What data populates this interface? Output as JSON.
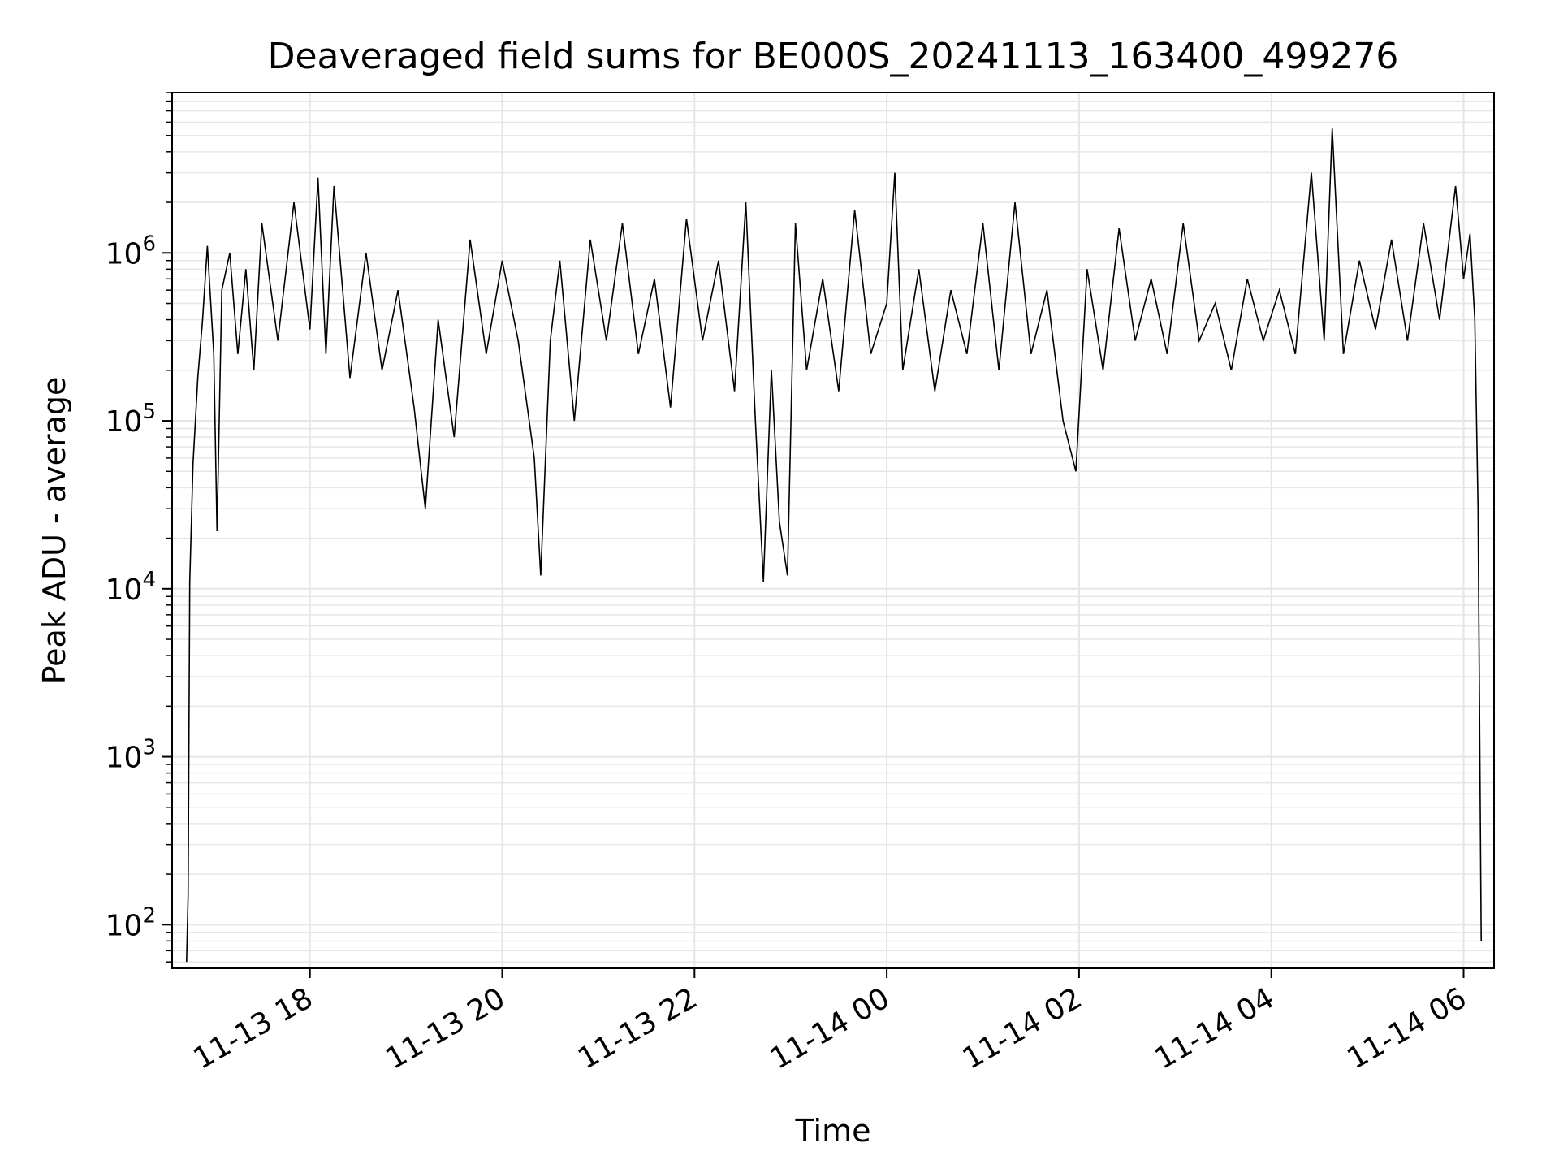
{
  "chart_data": {
    "type": "line",
    "title": "Deaveraged field sums for BE000S_20241113_163400_499276",
    "xlabel": "Time",
    "ylabel": "Peak ADU - average",
    "yscale": "log",
    "ylim": [
      55,
      9000000
    ],
    "xlim": [
      "2024-11-13 16:34",
      "2024-11-14 06:19"
    ],
    "grid": "on (major and minor)",
    "line_color": "#000000",
    "grid_color": "#e6e6e6",
    "x_ticks": [
      {
        "value": "2024-11-13 18:00",
        "label": "11-13 18"
      },
      {
        "value": "2024-11-13 20:00",
        "label": "11-13 20"
      },
      {
        "value": "2024-11-13 22:00",
        "label": "11-13 22"
      },
      {
        "value": "2024-11-14 00:00",
        "label": "11-14 00"
      },
      {
        "value": "2024-11-14 02:00",
        "label": "11-14 02"
      },
      {
        "value": "2024-11-14 04:00",
        "label": "11-14 04"
      },
      {
        "value": "2024-11-14 06:00",
        "label": "11-14 06"
      }
    ],
    "y_ticks": [
      {
        "value": 100,
        "base": "10",
        "exp": "2"
      },
      {
        "value": 1000,
        "base": "10",
        "exp": "3"
      },
      {
        "value": 10000,
        "base": "10",
        "exp": "4"
      },
      {
        "value": 100000,
        "base": "10",
        "exp": "5"
      },
      {
        "value": 1000000,
        "base": "10",
        "exp": "6"
      }
    ],
    "series": [
      {
        "points": [
          [
            "2024-11-13 16:43",
            60
          ],
          [
            "2024-11-13 16:44",
            150
          ],
          [
            "2024-11-13 16:45",
            11000
          ],
          [
            "2024-11-13 16:47",
            55000
          ],
          [
            "2024-11-13 16:50",
            180000
          ],
          [
            "2024-11-13 16:53",
            400000
          ],
          [
            "2024-11-13 16:56",
            1100000
          ],
          [
            "2024-11-13 17:00",
            250000
          ],
          [
            "2024-11-13 17:02",
            22000
          ],
          [
            "2024-11-13 17:05",
            600000
          ],
          [
            "2024-11-13 17:10",
            1000000
          ],
          [
            "2024-11-13 17:15",
            250000
          ],
          [
            "2024-11-13 17:20",
            800000
          ],
          [
            "2024-11-13 17:25",
            200000
          ],
          [
            "2024-11-13 17:30",
            1500000
          ],
          [
            "2024-11-13 17:40",
            300000
          ],
          [
            "2024-11-13 17:50",
            2000000
          ],
          [
            "2024-11-13 18:00",
            350000
          ],
          [
            "2024-11-13 18:05",
            2800000
          ],
          [
            "2024-11-13 18:10",
            250000
          ],
          [
            "2024-11-13 18:15",
            2500000
          ],
          [
            "2024-11-13 18:25",
            180000
          ],
          [
            "2024-11-13 18:35",
            1000000
          ],
          [
            "2024-11-13 18:45",
            200000
          ],
          [
            "2024-11-13 18:55",
            600000
          ],
          [
            "2024-11-13 19:05",
            120000
          ],
          [
            "2024-11-13 19:12",
            30000
          ],
          [
            "2024-11-13 19:20",
            400000
          ],
          [
            "2024-11-13 19:30",
            80000
          ],
          [
            "2024-11-13 19:40",
            1200000
          ],
          [
            "2024-11-13 19:50",
            250000
          ],
          [
            "2024-11-13 20:00",
            900000
          ],
          [
            "2024-11-13 20:10",
            300000
          ],
          [
            "2024-11-13 20:20",
            60000
          ],
          [
            "2024-11-13 20:24",
            12000
          ],
          [
            "2024-11-13 20:30",
            300000
          ],
          [
            "2024-11-13 20:36",
            900000
          ],
          [
            "2024-11-13 20:45",
            100000
          ],
          [
            "2024-11-13 20:55",
            1200000
          ],
          [
            "2024-11-13 21:05",
            300000
          ],
          [
            "2024-11-13 21:15",
            1500000
          ],
          [
            "2024-11-13 21:25",
            250000
          ],
          [
            "2024-11-13 21:35",
            700000
          ],
          [
            "2024-11-13 21:45",
            120000
          ],
          [
            "2024-11-13 21:55",
            1600000
          ],
          [
            "2024-11-13 22:05",
            300000
          ],
          [
            "2024-11-13 22:15",
            900000
          ],
          [
            "2024-11-13 22:25",
            150000
          ],
          [
            "2024-11-13 22:32",
            2000000
          ],
          [
            "2024-11-13 22:38",
            100000
          ],
          [
            "2024-11-13 22:43",
            11000
          ],
          [
            "2024-11-13 22:48",
            200000
          ],
          [
            "2024-11-13 22:53",
            25000
          ],
          [
            "2024-11-13 22:58",
            12000
          ],
          [
            "2024-11-13 23:03",
            1500000
          ],
          [
            "2024-11-13 23:10",
            200000
          ],
          [
            "2024-11-13 23:20",
            700000
          ],
          [
            "2024-11-13 23:30",
            150000
          ],
          [
            "2024-11-13 23:40",
            1800000
          ],
          [
            "2024-11-13 23:50",
            250000
          ],
          [
            "2024-11-14 00:00",
            500000
          ],
          [
            "2024-11-14 00:05",
            3000000
          ],
          [
            "2024-11-14 00:10",
            200000
          ],
          [
            "2024-11-14 00:20",
            800000
          ],
          [
            "2024-11-14 00:30",
            150000
          ],
          [
            "2024-11-14 00:40",
            600000
          ],
          [
            "2024-11-14 00:50",
            250000
          ],
          [
            "2024-11-14 01:00",
            1500000
          ],
          [
            "2024-11-14 01:10",
            200000
          ],
          [
            "2024-11-14 01:20",
            2000000
          ],
          [
            "2024-11-14 01:30",
            250000
          ],
          [
            "2024-11-14 01:40",
            600000
          ],
          [
            "2024-11-14 01:50",
            100000
          ],
          [
            "2024-11-14 01:58",
            50000
          ],
          [
            "2024-11-14 02:05",
            800000
          ],
          [
            "2024-11-14 02:15",
            200000
          ],
          [
            "2024-11-14 02:25",
            1400000
          ],
          [
            "2024-11-14 02:35",
            300000
          ],
          [
            "2024-11-14 02:45",
            700000
          ],
          [
            "2024-11-14 02:55",
            250000
          ],
          [
            "2024-11-14 03:05",
            1500000
          ],
          [
            "2024-11-14 03:15",
            300000
          ],
          [
            "2024-11-14 03:25",
            500000
          ],
          [
            "2024-11-14 03:35",
            200000
          ],
          [
            "2024-11-14 03:45",
            700000
          ],
          [
            "2024-11-14 03:55",
            300000
          ],
          [
            "2024-11-14 04:05",
            600000
          ],
          [
            "2024-11-14 04:15",
            250000
          ],
          [
            "2024-11-14 04:25",
            3000000
          ],
          [
            "2024-11-14 04:33",
            300000
          ],
          [
            "2024-11-14 04:38",
            5500000
          ],
          [
            "2024-11-14 04:45",
            250000
          ],
          [
            "2024-11-14 04:55",
            900000
          ],
          [
            "2024-11-14 05:05",
            350000
          ],
          [
            "2024-11-14 05:15",
            1200000
          ],
          [
            "2024-11-14 05:25",
            300000
          ],
          [
            "2024-11-14 05:35",
            1500000
          ],
          [
            "2024-11-14 05:45",
            400000
          ],
          [
            "2024-11-14 05:55",
            2500000
          ],
          [
            "2024-11-14 06:00",
            700000
          ],
          [
            "2024-11-14 06:04",
            1300000
          ],
          [
            "2024-11-14 06:07",
            400000
          ],
          [
            "2024-11-14 06:09",
            30000
          ],
          [
            "2024-11-14 06:11",
            80
          ]
        ]
      }
    ]
  }
}
